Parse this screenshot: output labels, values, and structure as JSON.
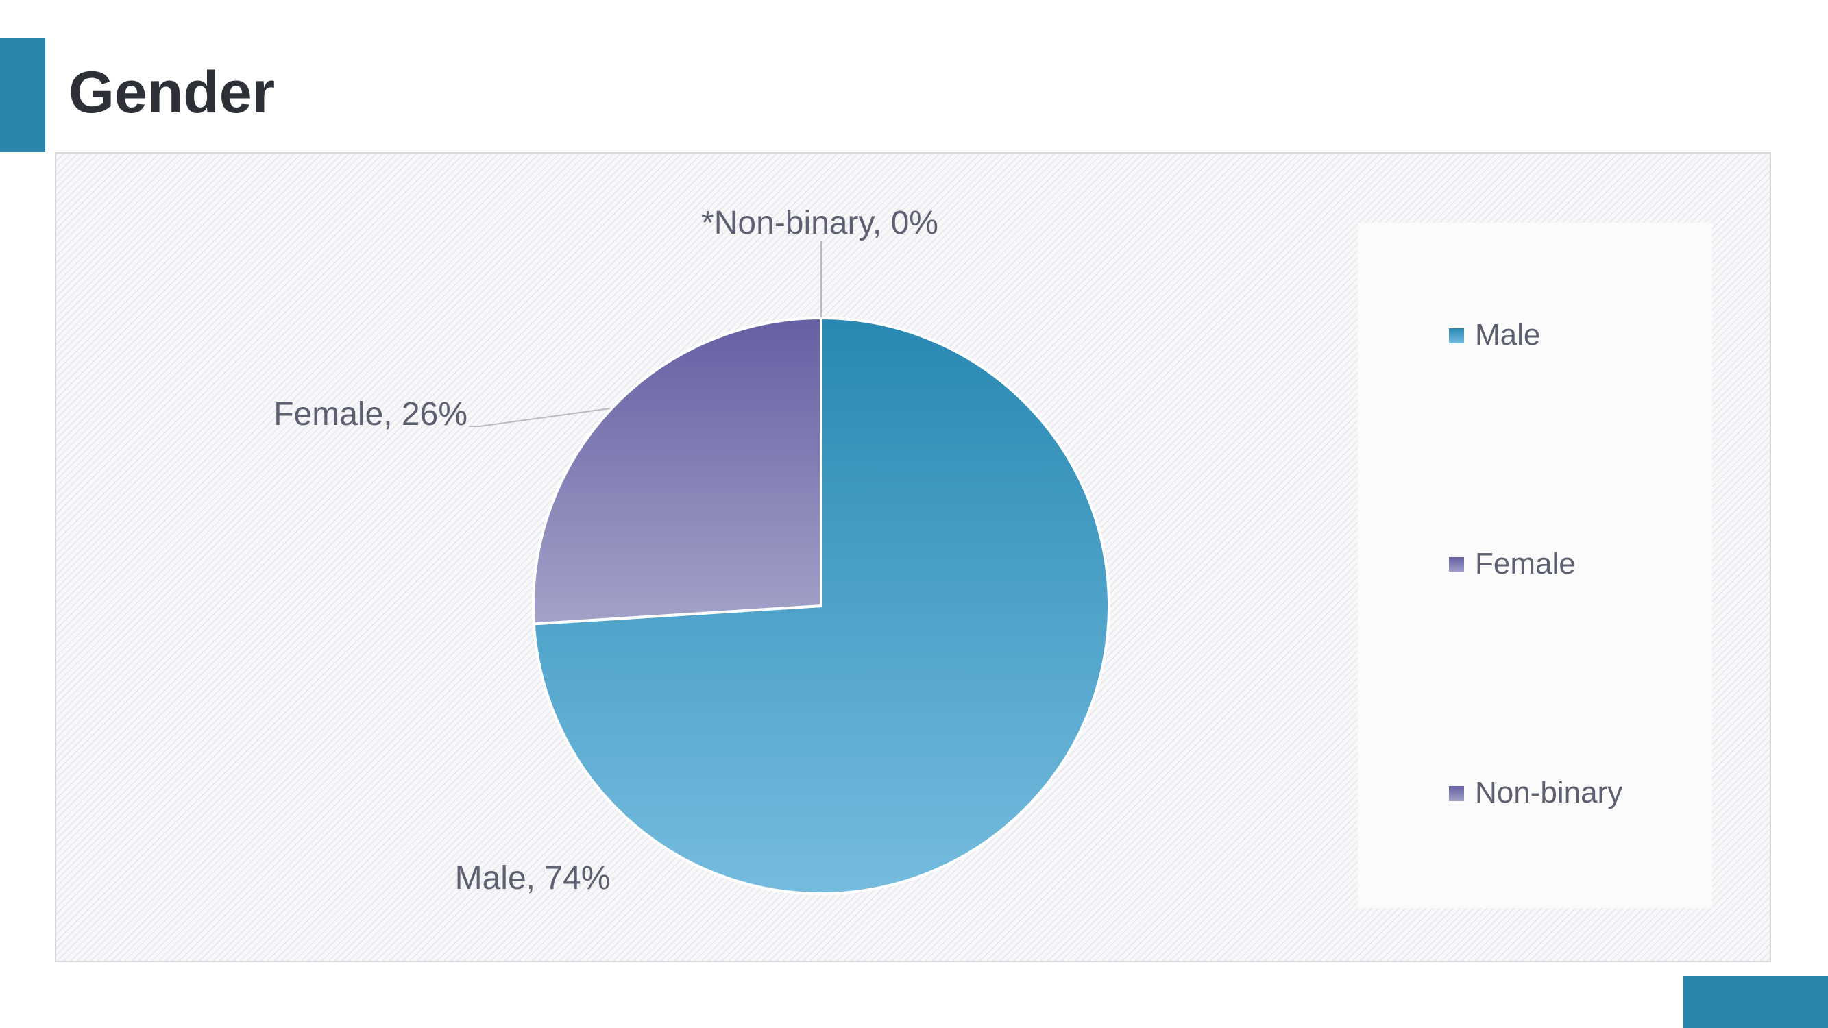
{
  "page": {
    "title": "Gender"
  },
  "colors": {
    "accent": "#2a86ad",
    "title_text": "#2e3038",
    "label_text": "#5c6070"
  },
  "chart_data": {
    "type": "pie",
    "title": "",
    "categories": [
      "Male",
      "Female",
      "Non-binary"
    ],
    "values": [
      74,
      26,
      0
    ],
    "unit": "%",
    "data_labels": [
      "Male, 74%",
      "Female, 26%",
      "*Non-binary, 0%"
    ],
    "series_colors": [
      [
        "#2888b2",
        "#75bcdf"
      ],
      [
        "#655fa3",
        "#a3a2c8"
      ],
      [
        "#655fa3",
        "#a3a2c8"
      ]
    ],
    "legend": {
      "position": "right",
      "entries": [
        "Male",
        "Female",
        "Non-binary"
      ]
    }
  }
}
